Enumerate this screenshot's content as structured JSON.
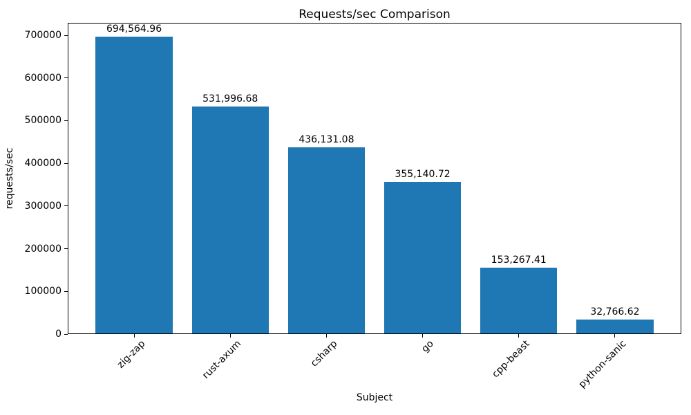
{
  "chart_data": {
    "type": "bar",
    "title": "Requests/sec Comparison",
    "xlabel": "Subject",
    "ylabel": "requests/sec",
    "categories": [
      "zig-zap",
      "rust-axum",
      "csharp",
      "go",
      "cpp-beast",
      "python-sanic"
    ],
    "values": [
      694564.96,
      531996.68,
      436131.08,
      355140.72,
      153267.41,
      32766.62
    ],
    "value_labels": [
      "694,564.96",
      "531,996.68",
      "436,131.08",
      "355,140.72",
      "153,267.41",
      "32,766.62"
    ],
    "yticks": [
      0,
      100000,
      200000,
      300000,
      400000,
      500000,
      600000,
      700000
    ],
    "ytick_labels": [
      "0",
      "100000",
      "200000",
      "300000",
      "400000",
      "500000",
      "600000",
      "700000"
    ],
    "ylim": [
      0,
      729293
    ],
    "bar_color": "#1f77b4",
    "grid": false,
    "legend": false,
    "x_tick_rotation_deg": 45
  }
}
